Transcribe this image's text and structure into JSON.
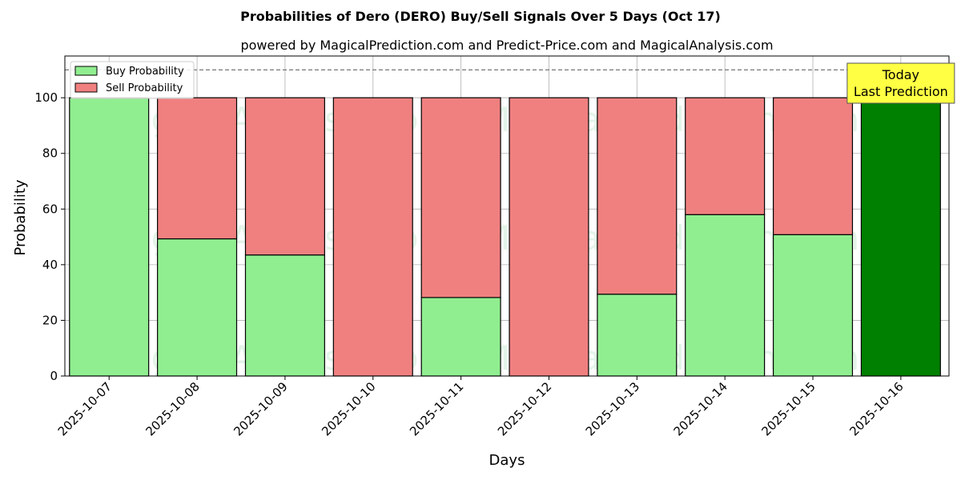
{
  "chart_data": {
    "type": "bar",
    "stacked": true,
    "title": "Probabilities of Dero (DERO) Buy/Sell Signals Over 5 Days (Oct 17)",
    "subtitle": "powered by MagicalPrediction.com and Predict-Price.com and MagicalAnalysis.com",
    "xlabel": "Days",
    "ylabel": "Probability",
    "ylim": [
      0,
      115
    ],
    "yticks": [
      0,
      20,
      40,
      60,
      80,
      100
    ],
    "grid": true,
    "legend_position": "top-left",
    "reference_line": {
      "y": 110,
      "style": "dashed"
    },
    "categories": [
      "2025-10-07",
      "2025-10-08",
      "2025-10-09",
      "2025-10-10",
      "2025-10-11",
      "2025-10-12",
      "2025-10-13",
      "2025-10-14",
      "2025-10-15",
      "2025-10-16"
    ],
    "series": [
      {
        "name": "Buy Probability",
        "color": "#90ee90",
        "values": [
          100,
          49.3,
          43.5,
          0,
          28.2,
          0,
          29.4,
          58,
          50.8,
          100
        ]
      },
      {
        "name": "Sell Probability",
        "color": "#f08080",
        "values": [
          0,
          50.7,
          56.5,
          100,
          71.8,
          100,
          70.6,
          42,
          49.2,
          0
        ]
      }
    ],
    "highlight": {
      "index": 9,
      "color": "#008000"
    },
    "annotation": {
      "lines": [
        "Today",
        "Last Prediction"
      ],
      "background": "#ffff44"
    },
    "watermarks": [
      "MagicalAnalysis.com",
      "MagicalPrediction.com"
    ]
  }
}
